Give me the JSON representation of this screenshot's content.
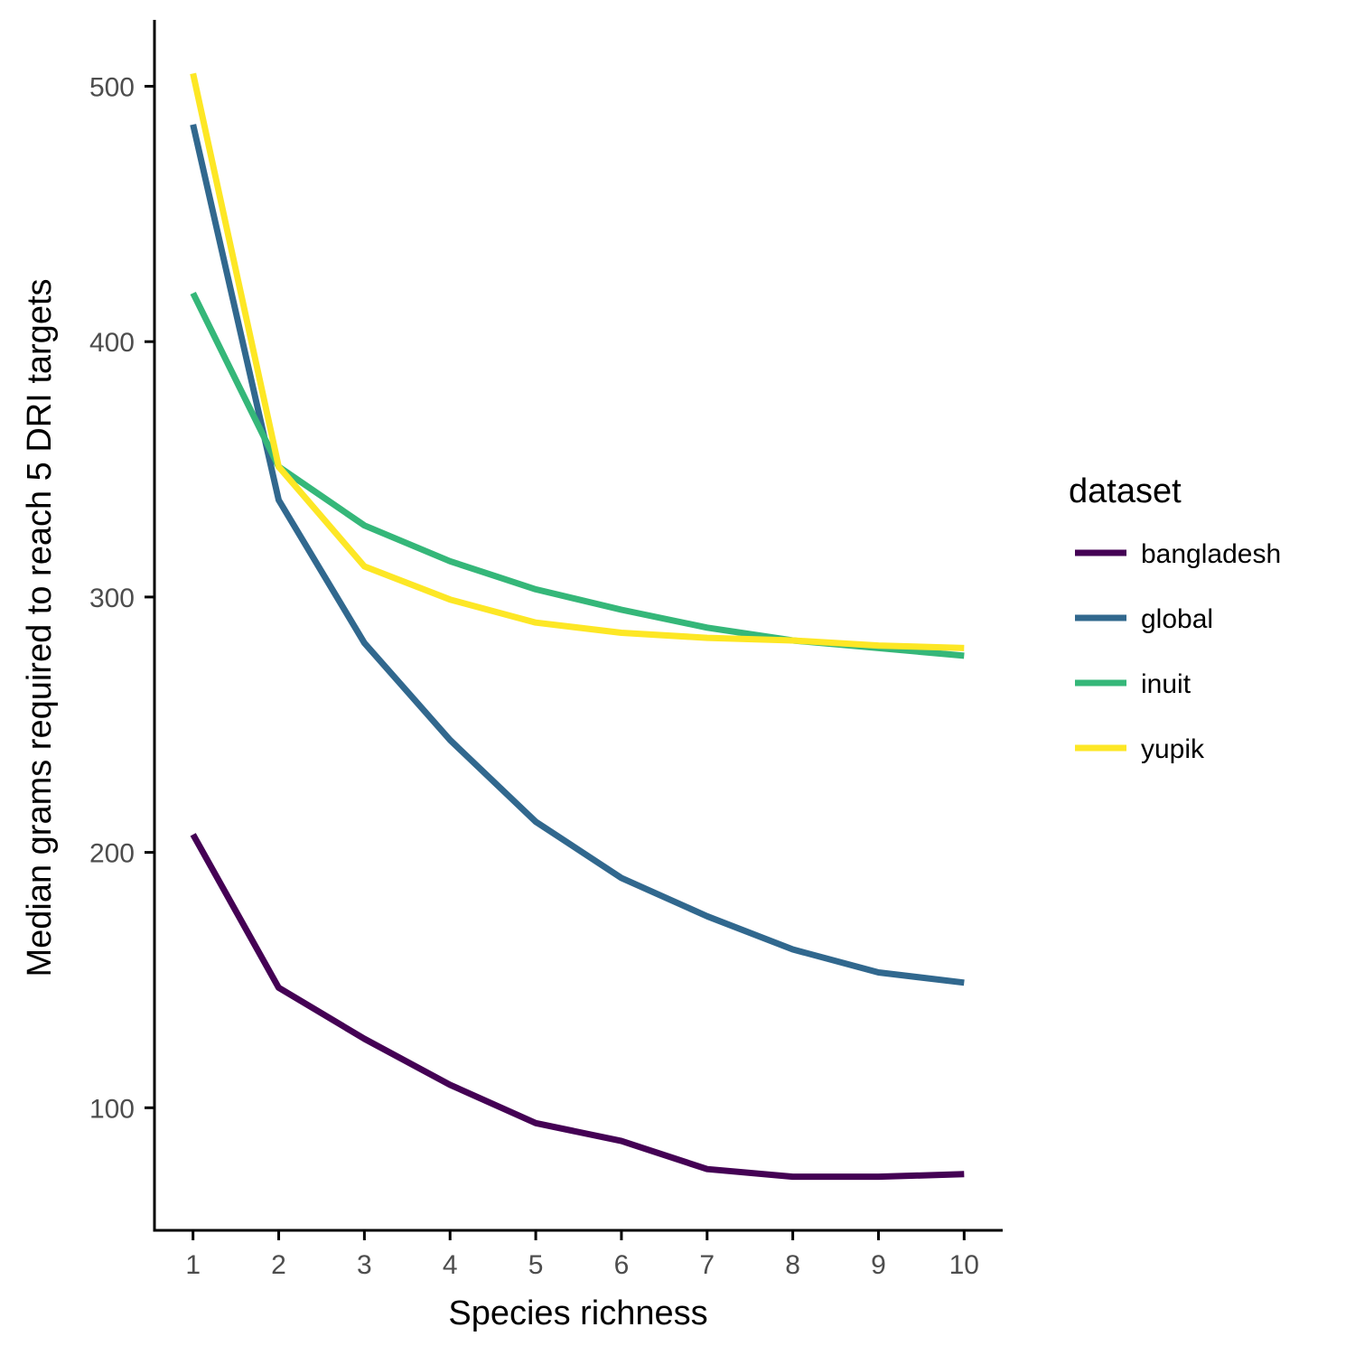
{
  "chart_data": {
    "type": "line",
    "title": "",
    "xlabel": "Species richness",
    "ylabel": "Median grams required to reach 5 DRI targets",
    "x": [
      1,
      2,
      3,
      4,
      5,
      6,
      7,
      8,
      9,
      10
    ],
    "x_ticks": [
      "1",
      "2",
      "3",
      "4",
      "5",
      "6",
      "7",
      "8",
      "9",
      "10"
    ],
    "y_ticks": [
      "100",
      "200",
      "300",
      "400",
      "500"
    ],
    "xlim": [
      0.55,
      10.45
    ],
    "ylim": [
      52,
      526
    ],
    "grid": false,
    "legend": {
      "title": "dataset",
      "position": "right"
    },
    "series": [
      {
        "name": "bangladesh",
        "color": "#440154",
        "values": [
          207,
          147,
          127,
          109,
          94,
          87,
          76,
          73,
          73,
          74
        ]
      },
      {
        "name": "global",
        "color": "#31688E",
        "values": [
          485,
          338,
          282,
          244,
          212,
          190,
          175,
          162,
          153,
          149
        ]
      },
      {
        "name": "inuit",
        "color": "#35B779",
        "values": [
          419,
          351,
          328,
          314,
          303,
          295,
          288,
          283,
          280,
          277
        ]
      },
      {
        "name": "yupik",
        "color": "#FDE725",
        "values": [
          505,
          351,
          312,
          299,
          290,
          286,
          284,
          283,
          281,
          280
        ]
      }
    ]
  }
}
